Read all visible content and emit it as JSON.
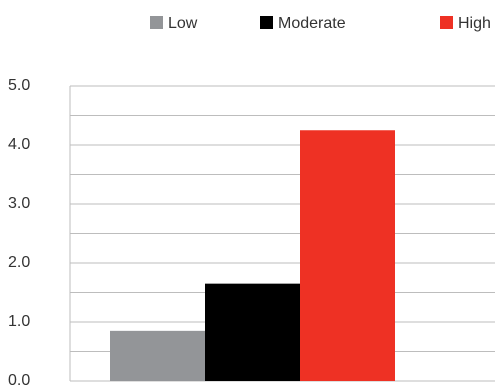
{
  "chart_data": {
    "type": "bar",
    "categories": [
      ""
    ],
    "series": [
      {
        "name": "Low",
        "color": "#939598",
        "values": [
          0.85
        ]
      },
      {
        "name": "Moderate",
        "color": "#000000",
        "values": [
          1.65
        ]
      },
      {
        "name": "High",
        "color": "#ee3124",
        "values": [
          4.25
        ]
      }
    ],
    "ylim": [
      0,
      5
    ],
    "yticks": [
      {
        "value": 0,
        "label": "0.0"
      },
      {
        "value": 1,
        "label": "1.0"
      },
      {
        "value": 2,
        "label": "2.0"
      },
      {
        "value": 3,
        "label": "3.0"
      },
      {
        "value": 4,
        "label": "4.0"
      },
      {
        "value": 5,
        "label": "5.0"
      }
    ],
    "minor_yticks": [
      0.5,
      1.5,
      2.5,
      3.5,
      4.5
    ],
    "grid": true,
    "legend": "top"
  }
}
